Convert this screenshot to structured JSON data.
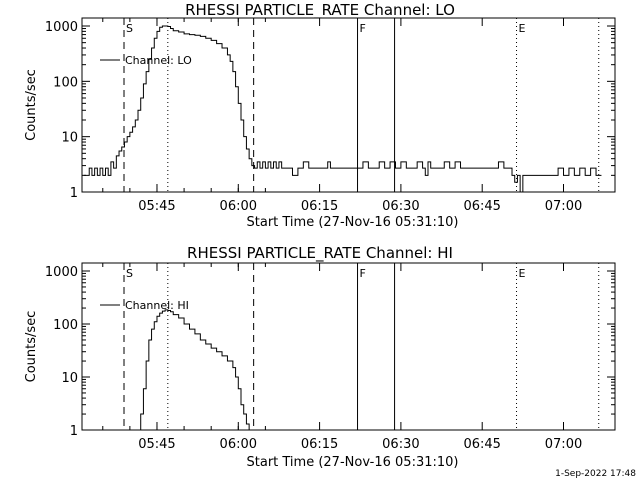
{
  "chart_data": [
    {
      "type": "line",
      "title": "RHESSI PARTICLE_RATE Channel: LO",
      "xlabel": "Start Time (27-Nov-16 05:31:10)",
      "ylabel": "Counts/sec",
      "yscale": "log",
      "ylim": [
        1,
        1000
      ],
      "xlim": [
        "05:31:10",
        "07:09:30"
      ],
      "x_ticks": [
        "05:45",
        "06:00",
        "06:15",
        "06:30",
        "06:45",
        "07:00"
      ],
      "y_ticks": [
        "1",
        "10",
        "100",
        "1000"
      ],
      "legend": "Channel: LO",
      "legend_position": "top-left",
      "markers": [
        {
          "label": "S",
          "time": "05:38:55",
          "style": "dashed"
        },
        {
          "label": "",
          "time": "05:47:00",
          "style": "dotted"
        },
        {
          "label": "",
          "time": "06:02:50",
          "style": "dashed"
        },
        {
          "label": "F",
          "time": "06:22:00",
          "style": "solid"
        },
        {
          "label": "",
          "time": "06:28:50",
          "style": "solid"
        },
        {
          "label": "E",
          "time": "06:51:20",
          "style": "dotted"
        },
        {
          "label": "",
          "time": "07:06:30",
          "style": "dotted"
        }
      ],
      "series": [
        {
          "name": "Channel: LO",
          "x": [
            "05:31:30",
            "05:32:00",
            "05:32:30",
            "05:33:00",
            "05:33:30",
            "05:34:00",
            "05:34:30",
            "05:35:00",
            "05:35:30",
            "05:36:00",
            "05:36:30",
            "05:37:00",
            "05:37:30",
            "05:38:00",
            "05:38:30",
            "05:39:00",
            "05:39:30",
            "05:40:00",
            "05:40:30",
            "05:41:00",
            "05:41:30",
            "05:42:00",
            "05:42:30",
            "05:43:00",
            "05:43:30",
            "05:44:00",
            "05:44:30",
            "05:45:00",
            "05:45:30",
            "05:46:00",
            "05:46:30",
            "05:47:00",
            "05:47:30",
            "05:48:00",
            "05:49:00",
            "05:50:00",
            "05:51:00",
            "05:52:00",
            "05:53:00",
            "05:54:00",
            "05:55:00",
            "05:56:00",
            "05:57:00",
            "05:58:00",
            "05:58:30",
            "05:59:00",
            "05:59:30",
            "06:00:00",
            "06:00:30",
            "06:01:00",
            "06:01:30",
            "06:02:00",
            "06:02:30",
            "06:03:00",
            "06:03:30",
            "06:04:00",
            "06:04:30",
            "06:05:00",
            "06:05:30",
            "06:06:00",
            "06:06:30",
            "06:07:00",
            "06:07:30",
            "06:08:00",
            "06:09:00",
            "06:10:00",
            "06:11:00",
            "06:11:30",
            "06:12:00",
            "06:13:00",
            "06:13:30",
            "06:14:00",
            "06:15:00",
            "06:16:00",
            "06:16:30",
            "06:17:00",
            "06:18:00",
            "06:19:00",
            "06:20:00",
            "06:21:00",
            "06:22:00",
            "06:23:00",
            "06:24:00",
            "06:25:00",
            "06:26:00",
            "06:27:00",
            "06:28:00",
            "06:29:00",
            "06:30:00",
            "06:31:00",
            "06:32:00",
            "06:33:00",
            "06:34:00",
            "06:34:30",
            "06:35:00",
            "06:35:30",
            "06:36:00",
            "06:37:00",
            "06:38:00",
            "06:39:00",
            "06:40:00",
            "06:41:00",
            "06:42:00",
            "06:43:00",
            "06:44:00",
            "06:45:00",
            "06:46:00",
            "06:47:00",
            "06:48:00",
            "06:49:00",
            "06:50:00",
            "06:50:30",
            "06:51:00",
            "06:51:30",
            "06:52:00",
            "06:52:30",
            "06:53:00",
            "06:53:30",
            "06:54:00",
            "06:55:00",
            "06:56:00",
            "06:57:00",
            "06:58:00",
            "06:59:00",
            "07:00:00",
            "07:01:00",
            "07:02:00",
            "07:03:00",
            "07:04:00",
            "07:05:00",
            "07:06:00",
            "07:07:00"
          ],
          "y": [
            2,
            2,
            2.7,
            2,
            2.7,
            2,
            2.7,
            2,
            2.7,
            2,
            3.5,
            2.7,
            4.5,
            5.5,
            6.5,
            8,
            10,
            12,
            15,
            20,
            30,
            50,
            90,
            150,
            250,
            400,
            600,
            800,
            950,
            1000,
            1000,
            980,
            900,
            820,
            780,
            720,
            700,
            680,
            650,
            600,
            550,
            480,
            400,
            300,
            230,
            150,
            80,
            40,
            20,
            10,
            6,
            4,
            3,
            2.7,
            3.5,
            2.7,
            3.5,
            2.7,
            3.5,
            2.7,
            3.5,
            2.7,
            3.5,
            2.7,
            2.7,
            2,
            2.7,
            2.7,
            3.5,
            2.7,
            2.7,
            2.7,
            2.7,
            2.7,
            3.5,
            2.7,
            2.7,
            2.7,
            2.7,
            2.7,
            2.7,
            3.5,
            2.7,
            2.7,
            3.5,
            2.7,
            3.5,
            2.7,
            3.5,
            2.7,
            2.7,
            3.5,
            2.7,
            2,
            3.5,
            2.7,
            2.7,
            2.7,
            3.5,
            2.7,
            3.5,
            2.7,
            2.7,
            2.7,
            2.7,
            2.7,
            2.7,
            2.7,
            3.5,
            2.7,
            2.7,
            2,
            1.5,
            2,
            1,
            2,
            2,
            2,
            2,
            2,
            2,
            2,
            2,
            2.7,
            2,
            2.7,
            2,
            2.7,
            2,
            2.7,
            2,
            2
          ]
        }
      ]
    },
    {
      "type": "line",
      "title": "RHESSI PARTICLE_RATE Channel: HI",
      "xlabel": "Start Time (27-Nov-16 05:31:10)",
      "ylabel": "Counts/sec",
      "yscale": "log",
      "ylim": [
        1,
        1000
      ],
      "xlim": [
        "05:31:10",
        "07:09:30"
      ],
      "x_ticks": [
        "05:45",
        "06:00",
        "06:15",
        "06:30",
        "06:45",
        "07:00"
      ],
      "y_ticks": [
        "1",
        "10",
        "100",
        "1000"
      ],
      "legend": "Channel: HI",
      "legend_position": "top-left",
      "markers": [
        {
          "label": "S",
          "time": "05:38:55",
          "style": "dashed"
        },
        {
          "label": "",
          "time": "05:47:00",
          "style": "dotted"
        },
        {
          "label": "",
          "time": "06:02:50",
          "style": "dashed"
        },
        {
          "label": "F",
          "time": "06:22:00",
          "style": "solid"
        },
        {
          "label": "",
          "time": "06:28:50",
          "style": "solid"
        },
        {
          "label": "E",
          "time": "06:51:20",
          "style": "dotted"
        },
        {
          "label": "",
          "time": "07:06:30",
          "style": "dotted"
        }
      ],
      "series": [
        {
          "name": "Channel: HI",
          "x": [
            "05:41:40",
            "05:42:00",
            "05:42:30",
            "05:43:00",
            "05:43:30",
            "05:44:00",
            "05:44:30",
            "05:45:00",
            "05:45:30",
            "05:46:00",
            "05:46:30",
            "05:47:00",
            "05:47:30",
            "05:48:00",
            "05:49:00",
            "05:50:00",
            "05:51:00",
            "05:52:00",
            "05:53:00",
            "05:54:00",
            "05:55:00",
            "05:56:00",
            "05:57:00",
            "05:58:00",
            "05:59:00",
            "05:59:30",
            "06:00:00",
            "06:00:30",
            "06:01:00",
            "06:01:30",
            "06:02:00"
          ],
          "y": [
            1,
            2,
            6,
            20,
            50,
            80,
            110,
            140,
            160,
            175,
            185,
            180,
            170,
            150,
            130,
            100,
            80,
            65,
            50,
            42,
            35,
            30,
            25,
            20,
            15,
            10,
            6,
            3,
            2,
            1.3,
            1
          ]
        }
      ]
    }
  ],
  "footer": {
    "timestamp": "1-Sep-2022 17:48"
  }
}
